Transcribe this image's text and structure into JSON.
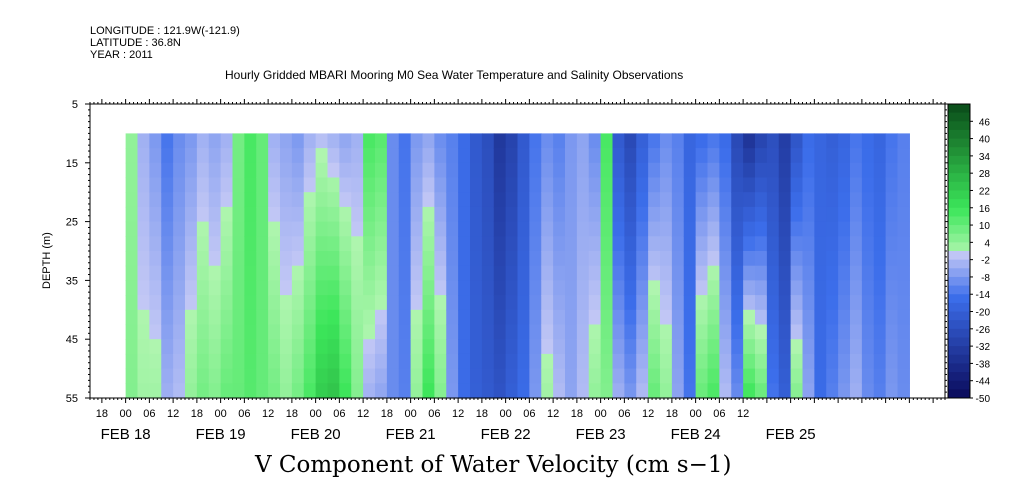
{
  "header": {
    "longitude": "LONGITUDE : 121.9W(-121.9)",
    "latitude": "LATITUDE : 36.8N",
    "year": "YEAR : 2011"
  },
  "chart_data": {
    "type": "heatmap",
    "title": "Hourly Gridded MBARI Mooring M0 Sea Water Temperature and Salinity Observations",
    "xlabel": "V Component of Water Velocity (cm s−1)",
    "ylabel": "DEPTH (m)",
    "y_inverted": true,
    "ylim": [
      5,
      55
    ],
    "y_ticks": [
      5,
      15,
      25,
      35,
      45,
      55
    ],
    "data_depth_range": [
      10,
      55
    ],
    "x_range_hours": [
      -9,
      207
    ],
    "data_start_hour": 0,
    "hour_tick_labels": [
      "18",
      "00",
      "06",
      "12",
      "18",
      "00",
      "06",
      "12",
      "18",
      "00",
      "06",
      "12",
      "18",
      "00",
      "06",
      "12",
      "18",
      "00",
      "06",
      "12",
      "18",
      "00",
      "06",
      "12",
      "18",
      "00",
      "06",
      "12"
    ],
    "date_labels": [
      "FEB 18",
      "FEB 19",
      "FEB 20",
      "FEB 21",
      "FEB 22",
      "FEB 23",
      "FEB 24",
      "FEB 25"
    ],
    "colorbar": {
      "labels": [
        "46",
        "40",
        "34",
        "28",
        "22",
        "16",
        "10",
        "4",
        "-2",
        "-8",
        "-14",
        "-20",
        "-26",
        "-32",
        "-38",
        "-44",
        "-50"
      ],
      "min": -50,
      "max": 52,
      "step": 3
    },
    "columns": [
      {
        "t": 0,
        "surf": 4,
        "bot": 6
      },
      {
        "t": 3,
        "surf": -4,
        "bot": 2
      },
      {
        "t": 6,
        "surf": -8,
        "bot": 2
      },
      {
        "t": 9,
        "surf": -14,
        "bot": -4
      },
      {
        "t": 12,
        "surf": -10,
        "bot": -2
      },
      {
        "t": 15,
        "surf": -8,
        "bot": 4
      },
      {
        "t": 18,
        "surf": -4,
        "bot": 8
      },
      {
        "t": 21,
        "surf": -6,
        "bot": 6
      },
      {
        "t": 24,
        "surf": -4,
        "bot": 10
      },
      {
        "t": 27,
        "surf": 8,
        "bot": 10
      },
      {
        "t": 30,
        "surf": 14,
        "bot": 12
      },
      {
        "t": 33,
        "surf": 10,
        "bot": 10
      },
      {
        "t": 36,
        "surf": -4,
        "bot": 8
      },
      {
        "t": 39,
        "surf": -6,
        "bot": 4
      },
      {
        "t": 42,
        "surf": -8,
        "bot": 8
      },
      {
        "t": 45,
        "surf": -4,
        "bot": 14
      },
      {
        "t": 48,
        "surf": -2,
        "bot": 22
      },
      {
        "t": 51,
        "surf": -4,
        "bot": 24
      },
      {
        "t": 54,
        "surf": -6,
        "bot": 16
      },
      {
        "t": 57,
        "surf": -4,
        "bot": 6
      },
      {
        "t": 60,
        "surf": 14,
        "bot": -4
      },
      {
        "t": 63,
        "surf": 12,
        "bot": -6
      },
      {
        "t": 66,
        "surf": -10,
        "bot": -10
      },
      {
        "t": 69,
        "surf": -14,
        "bot": -12
      },
      {
        "t": 72,
        "surf": -8,
        "bot": 4
      },
      {
        "t": 75,
        "surf": -6,
        "bot": 16
      },
      {
        "t": 78,
        "surf": -10,
        "bot": 6
      },
      {
        "t": 81,
        "surf": -12,
        "bot": -8
      },
      {
        "t": 84,
        "surf": -16,
        "bot": -16
      },
      {
        "t": 87,
        "surf": -22,
        "bot": -20
      },
      {
        "t": 90,
        "surf": -26,
        "bot": -22
      },
      {
        "t": 93,
        "surf": -34,
        "bot": -24
      },
      {
        "t": 96,
        "surf": -30,
        "bot": -20
      },
      {
        "t": 99,
        "surf": -22,
        "bot": -16
      },
      {
        "t": 102,
        "surf": -14,
        "bot": -8
      },
      {
        "t": 105,
        "surf": -10,
        "bot": 2
      },
      {
        "t": 108,
        "surf": -12,
        "bot": -2
      },
      {
        "t": 111,
        "surf": -8,
        "bot": -6
      },
      {
        "t": 114,
        "surf": -6,
        "bot": -2
      },
      {
        "t": 117,
        "surf": -10,
        "bot": 4
      },
      {
        "t": 120,
        "surf": 14,
        "bot": 6
      },
      {
        "t": 123,
        "surf": -22,
        "bot": -4
      },
      {
        "t": 126,
        "surf": -28,
        "bot": -8
      },
      {
        "t": 129,
        "surf": -20,
        "bot": -2
      },
      {
        "t": 132,
        "surf": -14,
        "bot": 10
      },
      {
        "t": 135,
        "surf": -10,
        "bot": 4
      },
      {
        "t": 138,
        "surf": -12,
        "bot": -6
      },
      {
        "t": 141,
        "surf": -18,
        "bot": -14
      },
      {
        "t": 144,
        "surf": -16,
        "bot": 10
      },
      {
        "t": 147,
        "surf": -14,
        "bot": 14
      },
      {
        "t": 150,
        "surf": -16,
        "bot": -2
      },
      {
        "t": 153,
        "surf": -28,
        "bot": -10
      },
      {
        "t": 156,
        "surf": -36,
        "bot": 16
      },
      {
        "t": 159,
        "surf": -30,
        "bot": 10
      },
      {
        "t": 162,
        "surf": -26,
        "bot": -14
      },
      {
        "t": 165,
        "surf": -32,
        "bot": -20
      },
      {
        "t": 168,
        "surf": -24,
        "bot": 6
      },
      {
        "t": 171,
        "surf": -16,
        "bot": -6
      },
      {
        "t": 174,
        "surf": -18,
        "bot": -16
      },
      {
        "t": 177,
        "surf": -20,
        "bot": -12
      },
      {
        "t": 180,
        "surf": -18,
        "bot": -8
      },
      {
        "t": 183,
        "surf": -14,
        "bot": -4
      },
      {
        "t": 186,
        "surf": -16,
        "bot": -10
      },
      {
        "t": 189,
        "surf": -18,
        "bot": -12
      },
      {
        "t": 192,
        "surf": -14,
        "bot": -8
      },
      {
        "t": 195,
        "surf": -12,
        "bot": -10
      }
    ]
  }
}
